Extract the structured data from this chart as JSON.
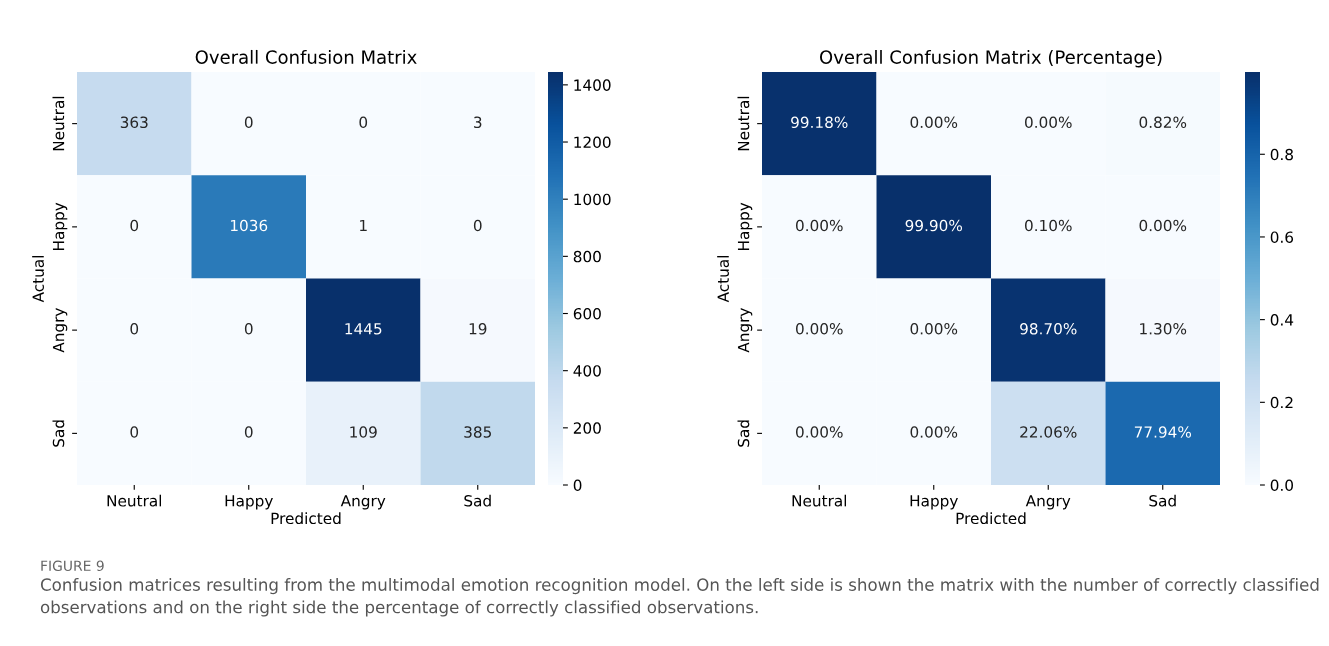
{
  "chart_data": [
    {
      "type": "heatmap",
      "title": "Overall Confusion Matrix",
      "xlabel": "Predicted",
      "ylabel": "Actual",
      "categories": [
        "Neutral",
        "Happy",
        "Angry",
        "Sad"
      ],
      "y_categories": [
        "Neutral",
        "Happy",
        "Angry",
        "Sad"
      ],
      "cells": [
        [
          363,
          0,
          0,
          3
        ],
        [
          0,
          1036,
          1,
          0
        ],
        [
          0,
          0,
          1445,
          19
        ],
        [
          0,
          0,
          109,
          385
        ]
      ],
      "data_labels": true,
      "clim": [
        0,
        1445
      ],
      "cticks": [
        0,
        200,
        400,
        600,
        800,
        1000,
        1200,
        1400
      ],
      "annotations": [
        "FIGURE 9",
        "Confusion matrices resulting from the multimodal emotion recognition model. On the left side is shown the matrix with the number of correctly classified observations and on the right side the percentage of correctly classified observations."
      ]
    },
    {
      "type": "heatmap",
      "title": "Overall Confusion Matrix (Percentage)",
      "xlabel": "Predicted",
      "ylabel": "Actual",
      "categories": [
        "Neutral",
        "Happy",
        "Angry",
        "Sad"
      ],
      "y_categories": [
        "Neutral",
        "Happy",
        "Angry",
        "Sad"
      ],
      "cells": [
        [
          0.9918,
          0.0,
          0.0,
          0.0082
        ],
        [
          0.0,
          0.999,
          0.001,
          0.0
        ],
        [
          0.0,
          0.0,
          0.987,
          0.013
        ],
        [
          0.0,
          0.0,
          0.2206,
          0.7794
        ]
      ],
      "cell_labels": [
        [
          "99.18%",
          "0.00%",
          "0.00%",
          "0.82%"
        ],
        [
          "0.00%",
          "99.90%",
          "0.10%",
          "0.00%"
        ],
        [
          "0.00%",
          "0.00%",
          "98.70%",
          "1.30%"
        ],
        [
          "0.00%",
          "0.00%",
          "22.06%",
          "77.94%"
        ]
      ],
      "clim": [
        0,
        0.999
      ],
      "cticks": [
        {
          "value": 0,
          "label": "0.0"
        },
        0.2,
        0.4,
        0.6,
        0.8
      ]
    }
  ]
}
